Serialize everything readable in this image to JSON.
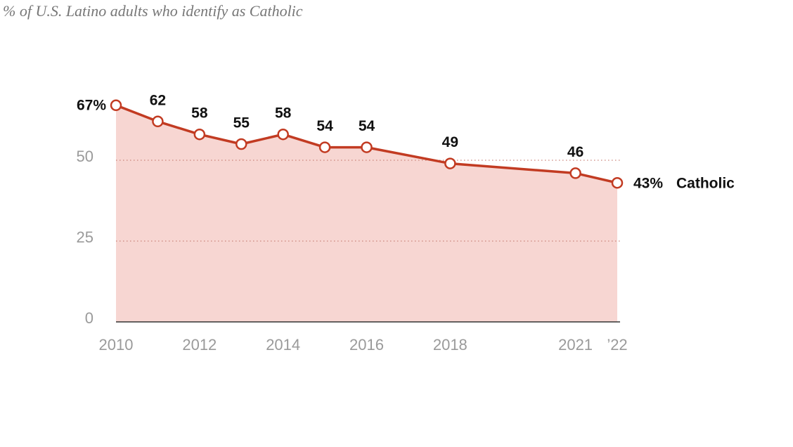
{
  "chart_data": {
    "type": "line",
    "title": "% of U.S. Latino adults who identify as Catholic",
    "x": [
      2010,
      2011,
      2012,
      2013,
      2014,
      2015,
      2016,
      2018,
      2021,
      2022
    ],
    "series": [
      {
        "name": "Catholic",
        "color": "#c23b22",
        "values": [
          67,
          62,
          58,
          55,
          58,
          54,
          54,
          49,
          46,
          43
        ],
        "value_labels": [
          "67%",
          "62",
          "58",
          "55",
          "58",
          "54",
          "54",
          "49",
          "46",
          "43%"
        ]
      }
    ],
    "area_color": "#f7d6d2",
    "xlim": [
      2010,
      2022
    ],
    "xticks": [
      2010,
      2012,
      2014,
      2016,
      2018,
      2021,
      {
        "value": 2022,
        "label": "’22"
      }
    ],
    "ylim": [
      0,
      70
    ],
    "yticks": [
      0,
      25,
      50
    ],
    "grid": true
  }
}
